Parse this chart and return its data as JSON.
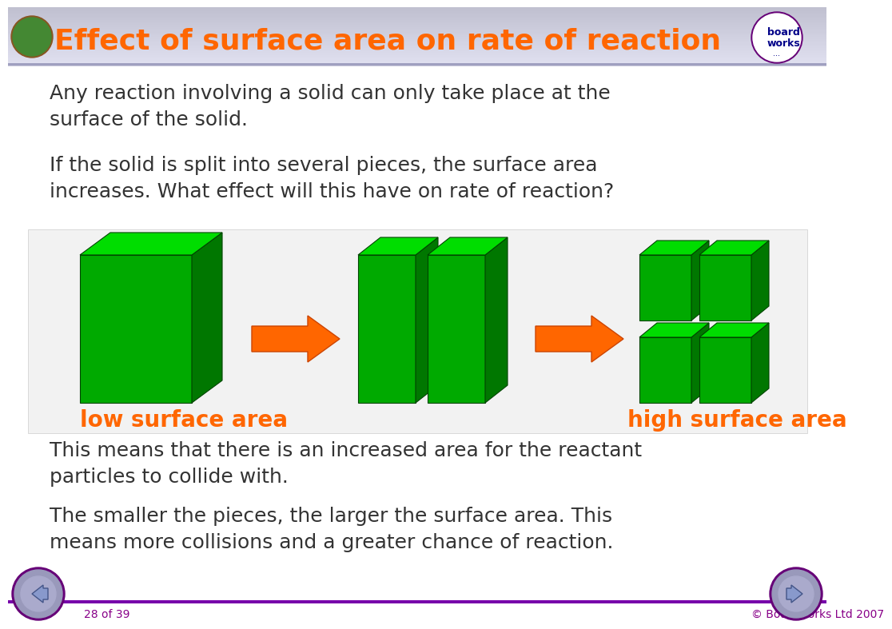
{
  "title": "Effect of surface area on rate of reaction",
  "title_color": "#FF6600",
  "header_bg_start": "#C8C8D8",
  "header_bg_end": "#E8E8F0",
  "body_bg_color": "#FFFFFF",
  "diagram_bg_color": "#F0F0F0",
  "text_color": "#333333",
  "orange_color": "#FF6600",
  "green_front": "#00AA00",
  "green_side": "#007700",
  "green_top": "#00DD00",
  "purple_color": "#7700AA",
  "footer_text_color": "#880088",
  "para1": "Any reaction involving a solid can only take place at the\nsurface of the solid.",
  "para2": "If the solid is split into several pieces, the surface area\nincreases. What effect will this have on rate of reaction?",
  "para3": "This means that there is an increased area for the reactant\nparticles to collide with.",
  "para4": "The smaller the pieces, the larger the surface area. This\nmeans more collisions and a greater chance of reaction.",
  "label_low": "low surface area",
  "label_high": "high surface area",
  "footer_left": "28 of 39",
  "footer_right": "© Boardworks Ltd 2007"
}
